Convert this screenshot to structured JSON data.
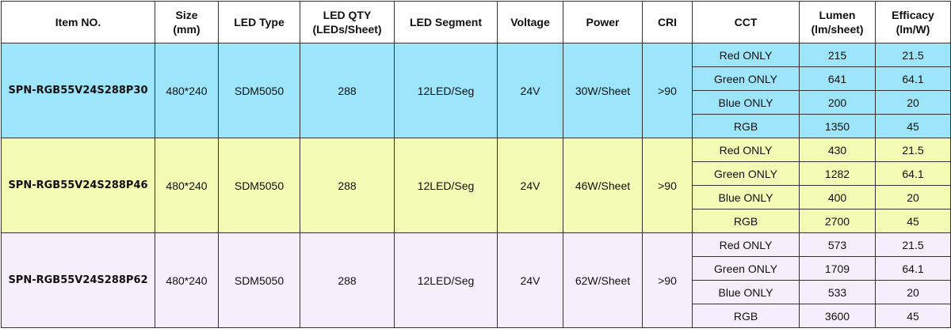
{
  "headers": [
    "Item  NO.",
    "Size\n(mm)",
    "LED Type",
    "LED QTY\n(LEDs/Sheet)",
    "LED Segment",
    "Voltage",
    "Power",
    "CRI",
    "CCT",
    "Lumen\n(lm/sheet)",
    "Efficacy\n(lm/W)"
  ],
  "colors": {
    "group0": "#9de5fb",
    "group1": "#f2fbb4",
    "group2": "#f6effb",
    "border": "#333333"
  },
  "groups": [
    {
      "item": "SPN-RGB55V24S288P30",
      "size": "480*240",
      "led_type": "SDM5050",
      "led_qty": "288",
      "segment": "12LED/Seg",
      "voltage": "24V",
      "power": "30W/Sheet",
      "cri": ">90",
      "rows": [
        {
          "cct": "Red ONLY",
          "lumen": "215",
          "efficacy": "21.5"
        },
        {
          "cct": "Green ONLY",
          "lumen": "641",
          "efficacy": "64.1"
        },
        {
          "cct": "Blue ONLY",
          "lumen": "200",
          "efficacy": "20"
        },
        {
          "cct": "RGB",
          "lumen": "1350",
          "efficacy": "45"
        }
      ]
    },
    {
      "item": "SPN-RGB55V24S288P46",
      "size": "480*240",
      "led_type": "SDM5050",
      "led_qty": "288",
      "segment": "12LED/Seg",
      "voltage": "24V",
      "power": "46W/Sheet",
      "cri": ">90",
      "rows": [
        {
          "cct": "Red ONLY",
          "lumen": "430",
          "efficacy": "21.5"
        },
        {
          "cct": "Green ONLY",
          "lumen": "1282",
          "efficacy": "64.1"
        },
        {
          "cct": "Blue ONLY",
          "lumen": "400",
          "efficacy": "20"
        },
        {
          "cct": "RGB",
          "lumen": "2700",
          "efficacy": "45"
        }
      ]
    },
    {
      "item": "SPN-RGB55V24S288P62",
      "size": "480*240",
      "led_type": "SDM5050",
      "led_qty": "288",
      "segment": "12LED/Seg",
      "voltage": "24V",
      "power": "62W/Sheet",
      "cri": ">90",
      "rows": [
        {
          "cct": "Red ONLY",
          "lumen": "573",
          "efficacy": "21.5"
        },
        {
          "cct": "Green ONLY",
          "lumen": "1709",
          "efficacy": "64.1"
        },
        {
          "cct": "Blue ONLY",
          "lumen": "533",
          "efficacy": "20"
        },
        {
          "cct": "RGB",
          "lumen": "3600",
          "efficacy": "45"
        }
      ]
    }
  ]
}
